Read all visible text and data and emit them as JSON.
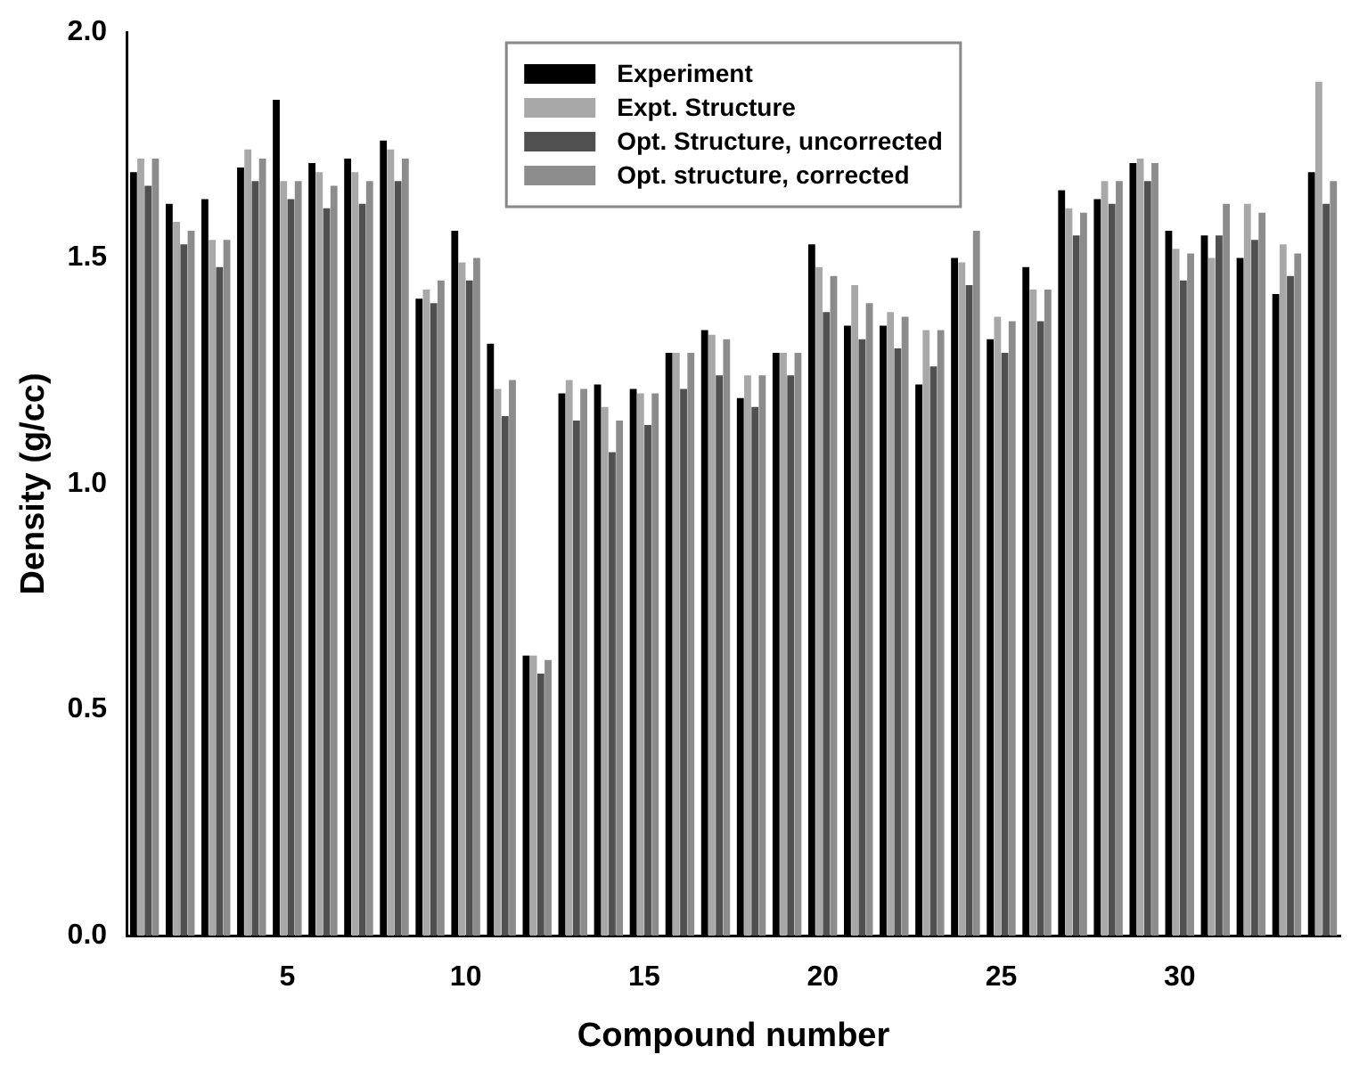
{
  "chart_data": {
    "type": "bar",
    "xlabel": "Compound number",
    "ylabel": "Density (g/cc)",
    "categories": [
      null,
      null,
      null,
      null,
      "5",
      null,
      null,
      null,
      null,
      "10",
      null,
      null,
      null,
      null,
      "15",
      null,
      null,
      null,
      null,
      "20",
      null,
      null,
      null,
      null,
      "25",
      null,
      null,
      null,
      null,
      "30",
      null,
      null,
      null,
      null
    ],
    "series": [
      {
        "name": "Experiment",
        "color": "#000000",
        "values": [
          1.69,
          1.62,
          1.63,
          1.7,
          1.85,
          1.71,
          1.72,
          1.76,
          1.41,
          1.56,
          1.31,
          0.62,
          1.2,
          1.22,
          1.21,
          1.29,
          1.34,
          1.19,
          1.29,
          1.53,
          1.35,
          1.35,
          1.22,
          1.5,
          1.32,
          1.48,
          1.65,
          1.63,
          1.71,
          1.56,
          1.55,
          1.5,
          1.42,
          1.69
        ]
      },
      {
        "name": "Expt. Structure",
        "color": "#a8a8a8",
        "values": [
          1.72,
          1.58,
          1.54,
          1.74,
          1.67,
          1.69,
          1.69,
          1.74,
          1.43,
          1.49,
          1.21,
          0.62,
          1.23,
          1.17,
          1.2,
          1.29,
          1.33,
          1.24,
          1.29,
          1.48,
          1.44,
          1.38,
          1.34,
          1.49,
          1.37,
          1.43,
          1.61,
          1.67,
          1.72,
          1.52,
          1.5,
          1.62,
          1.53,
          1.89
        ]
      },
      {
        "name": "Opt. Structure, uncorrected",
        "color": "#505050",
        "values": [
          1.66,
          1.53,
          1.48,
          1.67,
          1.63,
          1.61,
          1.62,
          1.67,
          1.4,
          1.45,
          1.15,
          0.58,
          1.14,
          1.07,
          1.13,
          1.21,
          1.24,
          1.17,
          1.24,
          1.38,
          1.32,
          1.3,
          1.26,
          1.44,
          1.29,
          1.36,
          1.55,
          1.62,
          1.67,
          1.45,
          1.55,
          1.54,
          1.46,
          1.62
        ]
      },
      {
        "name": "Opt. structure, corrected",
        "color": "#8c8c8c",
        "values": [
          1.72,
          1.56,
          1.54,
          1.72,
          1.67,
          1.66,
          1.67,
          1.72,
          1.45,
          1.5,
          1.23,
          0.61,
          1.21,
          1.14,
          1.2,
          1.29,
          1.32,
          1.24,
          1.29,
          1.46,
          1.4,
          1.37,
          1.34,
          1.56,
          1.36,
          1.43,
          1.6,
          1.67,
          1.71,
          1.51,
          1.62,
          1.6,
          1.51,
          1.67
        ]
      }
    ],
    "ylim": [
      0,
      2.0
    ],
    "yticks": [
      {
        "value": 0,
        "label": "0.0"
      },
      {
        "value": 0.5,
        "label": "0.5"
      },
      {
        "value": 1,
        "label": "1.0"
      },
      {
        "value": 1.5,
        "label": "1.5"
      },
      {
        "value": 2,
        "label": "2.0"
      }
    ],
    "legend": "top",
    "grid": false
  }
}
